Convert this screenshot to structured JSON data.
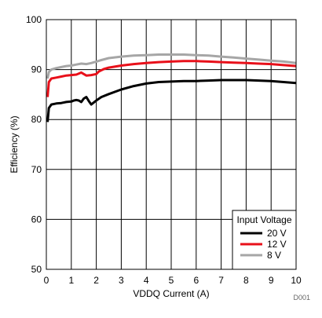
{
  "chart_data": {
    "type": "line",
    "xlabel": "VDDQ Current (A)",
    "ylabel": "Efficiency (%)",
    "xlim": [
      0,
      10
    ],
    "ylim": [
      50,
      100
    ],
    "x_ticks": [
      0,
      1,
      2,
      3,
      4,
      5,
      6,
      7,
      8,
      9,
      10
    ],
    "y_ticks": [
      50,
      60,
      70,
      80,
      90,
      100
    ],
    "grid": true,
    "legend": {
      "title": "Input Voltage",
      "placement": "bottom-right"
    },
    "figure_id": "D001",
    "series": [
      {
        "name": "20 V",
        "color": "#000000",
        "points": [
          [
            0.05,
            79.5
          ],
          [
            0.1,
            82.3
          ],
          [
            0.2,
            83.0
          ],
          [
            0.4,
            83.2
          ],
          [
            0.6,
            83.3
          ],
          [
            0.8,
            83.5
          ],
          [
            1.0,
            83.6
          ],
          [
            1.1,
            83.8
          ],
          [
            1.2,
            83.9
          ],
          [
            1.3,
            83.8
          ],
          [
            1.4,
            83.5
          ],
          [
            1.5,
            84.2
          ],
          [
            1.6,
            84.5
          ],
          [
            1.7,
            83.7
          ],
          [
            1.8,
            83.0
          ],
          [
            1.9,
            83.4
          ],
          [
            2.0,
            83.8
          ],
          [
            2.2,
            84.5
          ],
          [
            2.5,
            85.1
          ],
          [
            3.0,
            86.0
          ],
          [
            3.5,
            86.7
          ],
          [
            4.0,
            87.2
          ],
          [
            4.5,
            87.5
          ],
          [
            5.0,
            87.6
          ],
          [
            5.5,
            87.7
          ],
          [
            6.0,
            87.7
          ],
          [
            6.5,
            87.8
          ],
          [
            7.0,
            87.9
          ],
          [
            7.5,
            87.9
          ],
          [
            8.0,
            87.9
          ],
          [
            8.5,
            87.8
          ],
          [
            9.0,
            87.7
          ],
          [
            9.5,
            87.5
          ],
          [
            10.0,
            87.3
          ]
        ]
      },
      {
        "name": "12 V",
        "color": "#e8101a",
        "points": [
          [
            0.05,
            84.5
          ],
          [
            0.1,
            87.5
          ],
          [
            0.2,
            88.2
          ],
          [
            0.4,
            88.4
          ],
          [
            0.6,
            88.6
          ],
          [
            0.8,
            88.8
          ],
          [
            1.0,
            88.9
          ],
          [
            1.2,
            89.0
          ],
          [
            1.3,
            89.2
          ],
          [
            1.4,
            89.4
          ],
          [
            1.5,
            89.1
          ],
          [
            1.6,
            88.8
          ],
          [
            1.8,
            88.9
          ],
          [
            2.0,
            89.1
          ],
          [
            2.1,
            89.6
          ],
          [
            2.3,
            90.1
          ],
          [
            2.5,
            90.4
          ],
          [
            3.0,
            90.8
          ],
          [
            3.5,
            91.1
          ],
          [
            4.0,
            91.3
          ],
          [
            4.5,
            91.5
          ],
          [
            5.0,
            91.6
          ],
          [
            5.5,
            91.7
          ],
          [
            6.0,
            91.7
          ],
          [
            6.5,
            91.6
          ],
          [
            7.0,
            91.5
          ],
          [
            7.5,
            91.4
          ],
          [
            8.0,
            91.3
          ],
          [
            8.5,
            91.2
          ],
          [
            9.0,
            91.1
          ],
          [
            9.5,
            90.9
          ],
          [
            10.0,
            90.7
          ]
        ]
      },
      {
        "name": "8 V",
        "color": "#a6a6a6",
        "points": [
          [
            0.05,
            88.2
          ],
          [
            0.1,
            89.5
          ],
          [
            0.2,
            90.0
          ],
          [
            0.4,
            90.3
          ],
          [
            0.6,
            90.5
          ],
          [
            0.8,
            90.7
          ],
          [
            1.0,
            90.8
          ],
          [
            1.2,
            91.0
          ],
          [
            1.4,
            91.2
          ],
          [
            1.6,
            91.1
          ],
          [
            1.8,
            91.3
          ],
          [
            2.0,
            91.6
          ],
          [
            2.2,
            91.9
          ],
          [
            2.5,
            92.3
          ],
          [
            3.0,
            92.6
          ],
          [
            3.5,
            92.8
          ],
          [
            4.0,
            92.9
          ],
          [
            4.5,
            93.0
          ],
          [
            5.0,
            93.0
          ],
          [
            5.5,
            93.0
          ],
          [
            6.0,
            92.9
          ],
          [
            6.5,
            92.8
          ],
          [
            7.0,
            92.6
          ],
          [
            7.5,
            92.4
          ],
          [
            8.0,
            92.2
          ],
          [
            8.5,
            92.0
          ],
          [
            9.0,
            91.8
          ],
          [
            9.5,
            91.6
          ],
          [
            10.0,
            91.3
          ]
        ]
      }
    ]
  }
}
